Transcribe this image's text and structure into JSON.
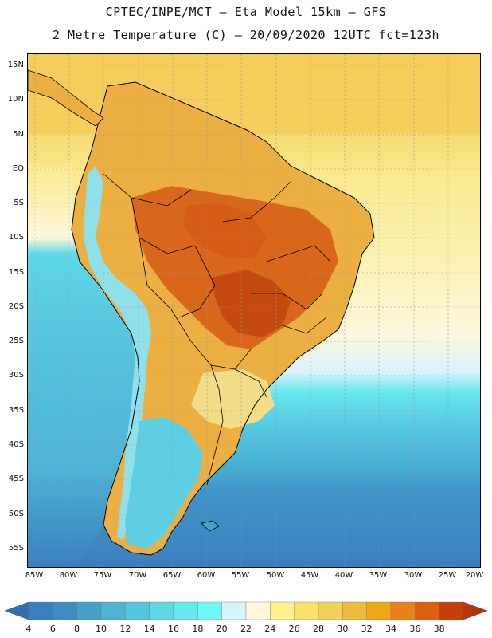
{
  "title_line1": "CPTEC/INPE/MCT –  Eta Model 15km – GFS",
  "title_line2": "2 Metre Temperature (C) – 20/09/2020 12UTC fct=123h",
  "lat_labels": [
    "15N",
    "10N",
    "5N",
    "EQ",
    "5S",
    "10S",
    "15S",
    "20S",
    "25S",
    "30S",
    "35S",
    "40S",
    "45S",
    "50S",
    "55S"
  ],
  "lon_labels": [
    "85W",
    "80W",
    "75W",
    "70W",
    "65W",
    "60W",
    "55W",
    "50W",
    "45W",
    "40W",
    "35W",
    "30W",
    "25W",
    "20W"
  ],
  "colorbar": {
    "labels": [
      "4",
      "6",
      "8",
      "10",
      "12",
      "14",
      "16",
      "18",
      "20",
      "22",
      "24",
      "26",
      "28",
      "30",
      "32",
      "34",
      "36",
      "38"
    ],
    "colors": [
      "#3a7fc0",
      "#3f8cc4",
      "#45a0cc",
      "#4fb3d6",
      "#56c4dd",
      "#5ed7e6",
      "#66e6ee",
      "#6ff7f7",
      "#d8f4fb",
      "#fdf7dc",
      "#fcf38e",
      "#f8e368",
      "#f3d057",
      "#eeba3e",
      "#f0a618",
      "#e98218",
      "#dd5f10",
      "#c54008"
    ],
    "under_color": "#336fb6",
    "over_color": "#b4360a"
  },
  "chart_data": {
    "type": "heatmap",
    "variable": "2 Metre Temperature (C)",
    "units": "C",
    "run": "20/09/2020 12UTC",
    "forecast_hour": 123,
    "lon_range": [
      -85,
      -20
    ],
    "lat_range": [
      -57,
      16
    ],
    "levels": [
      4,
      6,
      8,
      10,
      12,
      14,
      16,
      18,
      20,
      22,
      24,
      26,
      28,
      30,
      32,
      34,
      36,
      38
    ]
  }
}
